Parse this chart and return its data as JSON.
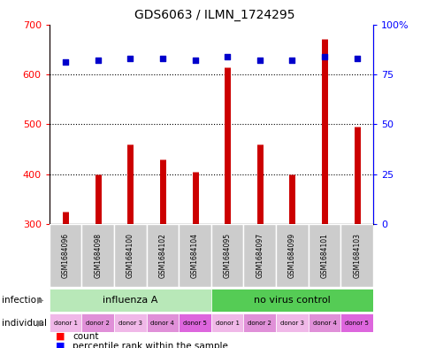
{
  "title": "GDS6063 / ILMN_1724295",
  "samples": [
    "GSM1684096",
    "GSM1684098",
    "GSM1684100",
    "GSM1684102",
    "GSM1684104",
    "GSM1684095",
    "GSM1684097",
    "GSM1684099",
    "GSM1684101",
    "GSM1684103"
  ],
  "counts": [
    325,
    400,
    460,
    430,
    405,
    615,
    460,
    400,
    670,
    495
  ],
  "percentiles": [
    81,
    82,
    83,
    83,
    82,
    84,
    82,
    82,
    84,
    83
  ],
  "ylim_left": [
    300,
    700
  ],
  "ylim_right": [
    0,
    100
  ],
  "yticks_left": [
    300,
    400,
    500,
    600,
    700
  ],
  "yticks_right": [
    0,
    25,
    50,
    75,
    100
  ],
  "bar_color": "#cc0000",
  "dot_color": "#0000cc",
  "bar_bottom": 300,
  "infection_labels": [
    "influenza A",
    "no virus control"
  ],
  "infection_colors": [
    "#b8e8b8",
    "#55cc55"
  ],
  "individual_labels": [
    "donor 1",
    "donor 2",
    "donor 3",
    "donor 4",
    "donor 5",
    "donor 1",
    "donor 2",
    "donor 3",
    "donor 4",
    "donor 5"
  ],
  "individual_colors": [
    "#f0b8e8",
    "#e090d8",
    "#f0b8e8",
    "#e090d8",
    "#dd66dd",
    "#f0b8e8",
    "#e090d8",
    "#f0b8e8",
    "#e090d8",
    "#dd66dd"
  ],
  "bg_color": "#ffffff",
  "sample_bg_color": "#cccccc",
  "grid_yticks": [
    400,
    500,
    600
  ]
}
